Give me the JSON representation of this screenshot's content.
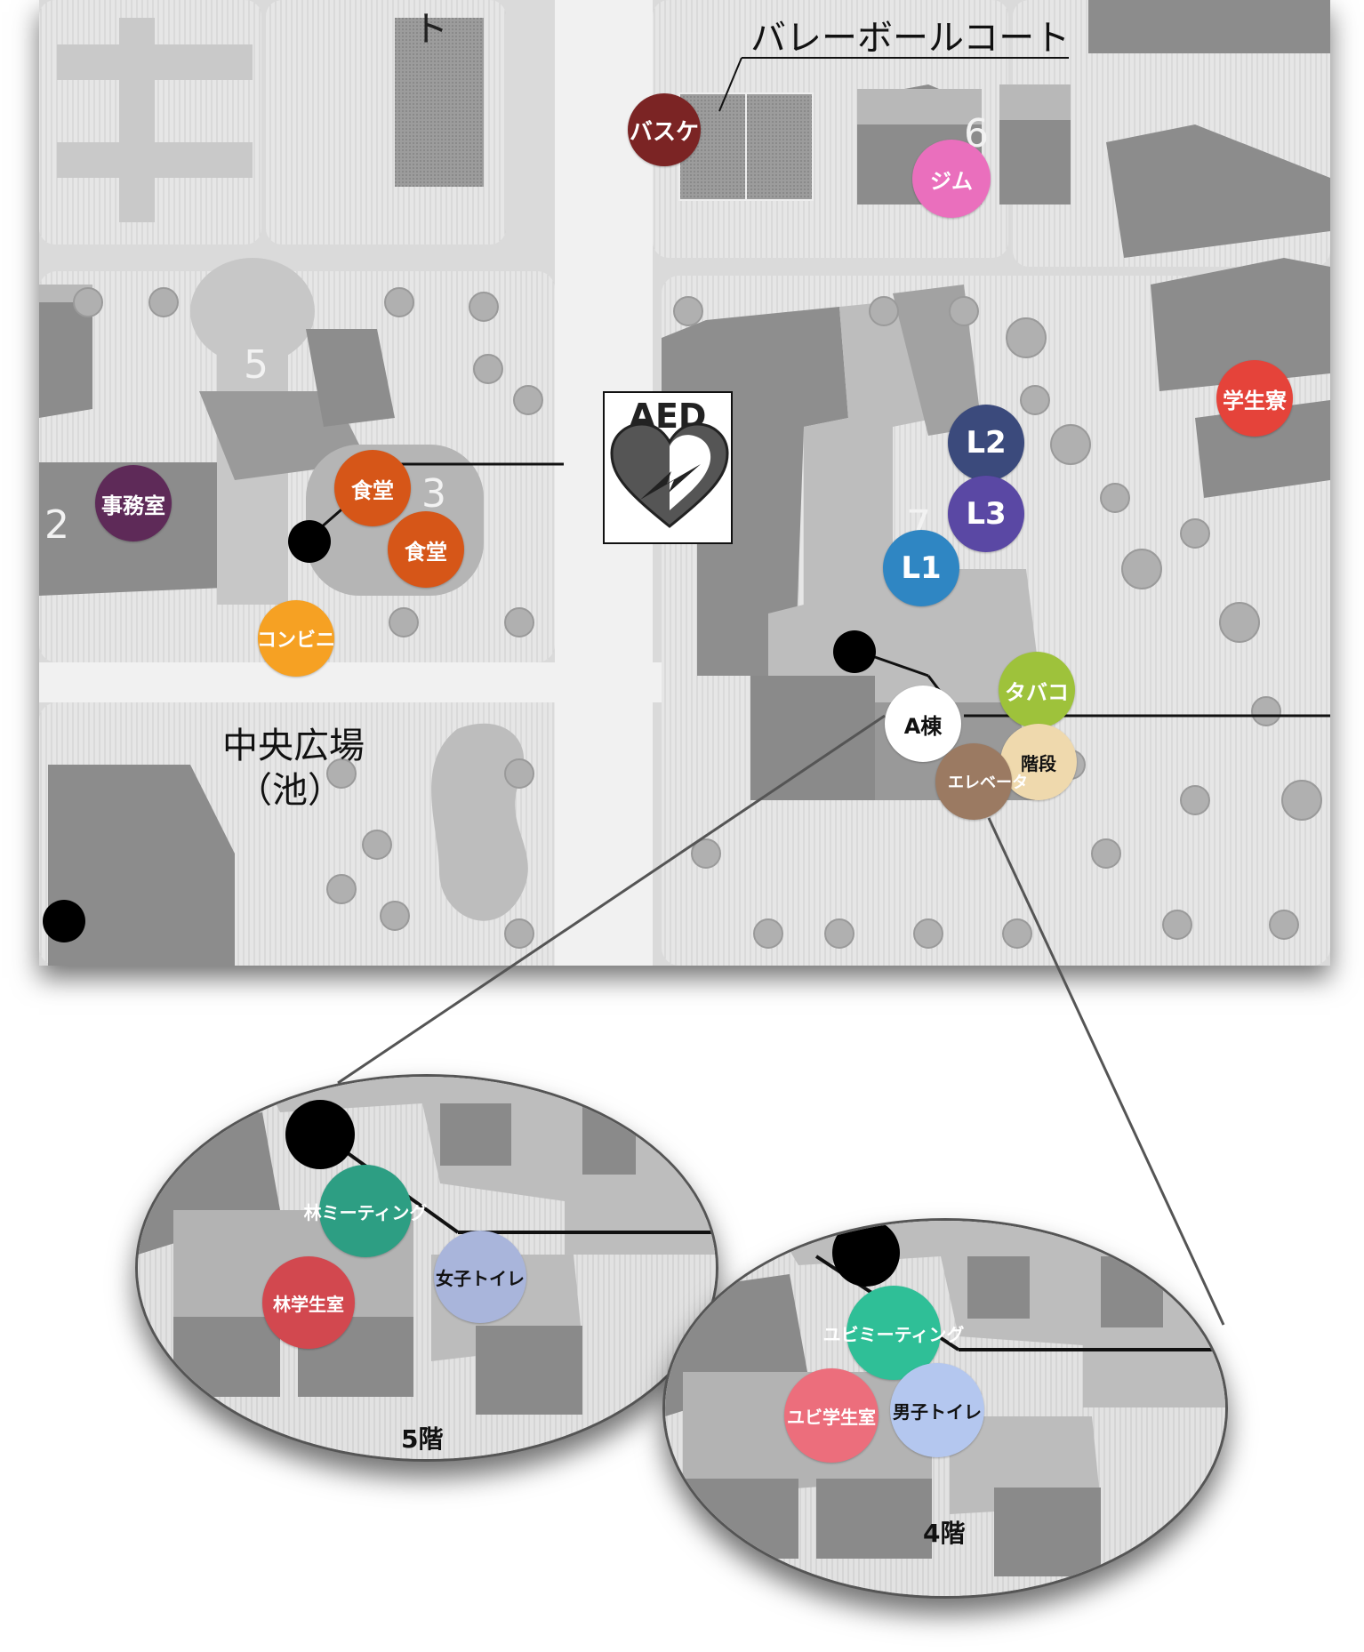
{
  "map_labels": {
    "volleyball": "バレーボールコート",
    "plaza_line1": "中央広場",
    "plaza_line2": "（池）",
    "top_fragment": "ト",
    "num_2": "2",
    "num_3": "3",
    "num_5": "5",
    "num_6": "6",
    "num_7": "7",
    "aed": "AED"
  },
  "pins": {
    "basuke": {
      "label": "バスケ",
      "color": "#7b2424"
    },
    "gym": {
      "label": "ジム",
      "color": "#ea6fbd"
    },
    "l2": {
      "label": "L2",
      "color": "#3b4a7c"
    },
    "l3": {
      "label": "L3",
      "color": "#5a48a4"
    },
    "l1": {
      "label": "L1",
      "color": "#2f86c3"
    },
    "dorm": {
      "label": "学生寮",
      "color": "#e5433a"
    },
    "office": {
      "label": "事務室",
      "color": "#5e2a58"
    },
    "cafeteria1": {
      "label": "食堂",
      "color": "#d65618"
    },
    "cafeteria2": {
      "label": "食堂",
      "color": "#d65618"
    },
    "convenience": {
      "label": "コンビニ",
      "color": "#f6a123"
    },
    "tobacco": {
      "label": "タバコ",
      "color": "#9ec23b"
    },
    "a_building": {
      "label": "A棟",
      "color": "#ffffff"
    },
    "stairs": {
      "label": "階段",
      "color": "#efd9ad"
    },
    "elevator": {
      "label": "エレベータ",
      "color": "#9b7a62"
    }
  },
  "floor5": {
    "title": "5階",
    "hayashi_meeting": {
      "label": "林ミーティング",
      "color": "#2d9e83"
    },
    "hayashi_room": {
      "label": "林学生室",
      "color": "#d2484f"
    },
    "women_toilet": {
      "label": "女子トイレ",
      "color": "#a9b5db"
    }
  },
  "floor4": {
    "title": "4階",
    "yubi_meeting": {
      "label": "ユビミーティング",
      "color": "#2fbf97"
    },
    "yubi_room": {
      "label": "ユビ学生室",
      "color": "#ec6e7c"
    },
    "men_toilet": {
      "label": "男子トイレ",
      "color": "#b4c7ef"
    }
  }
}
